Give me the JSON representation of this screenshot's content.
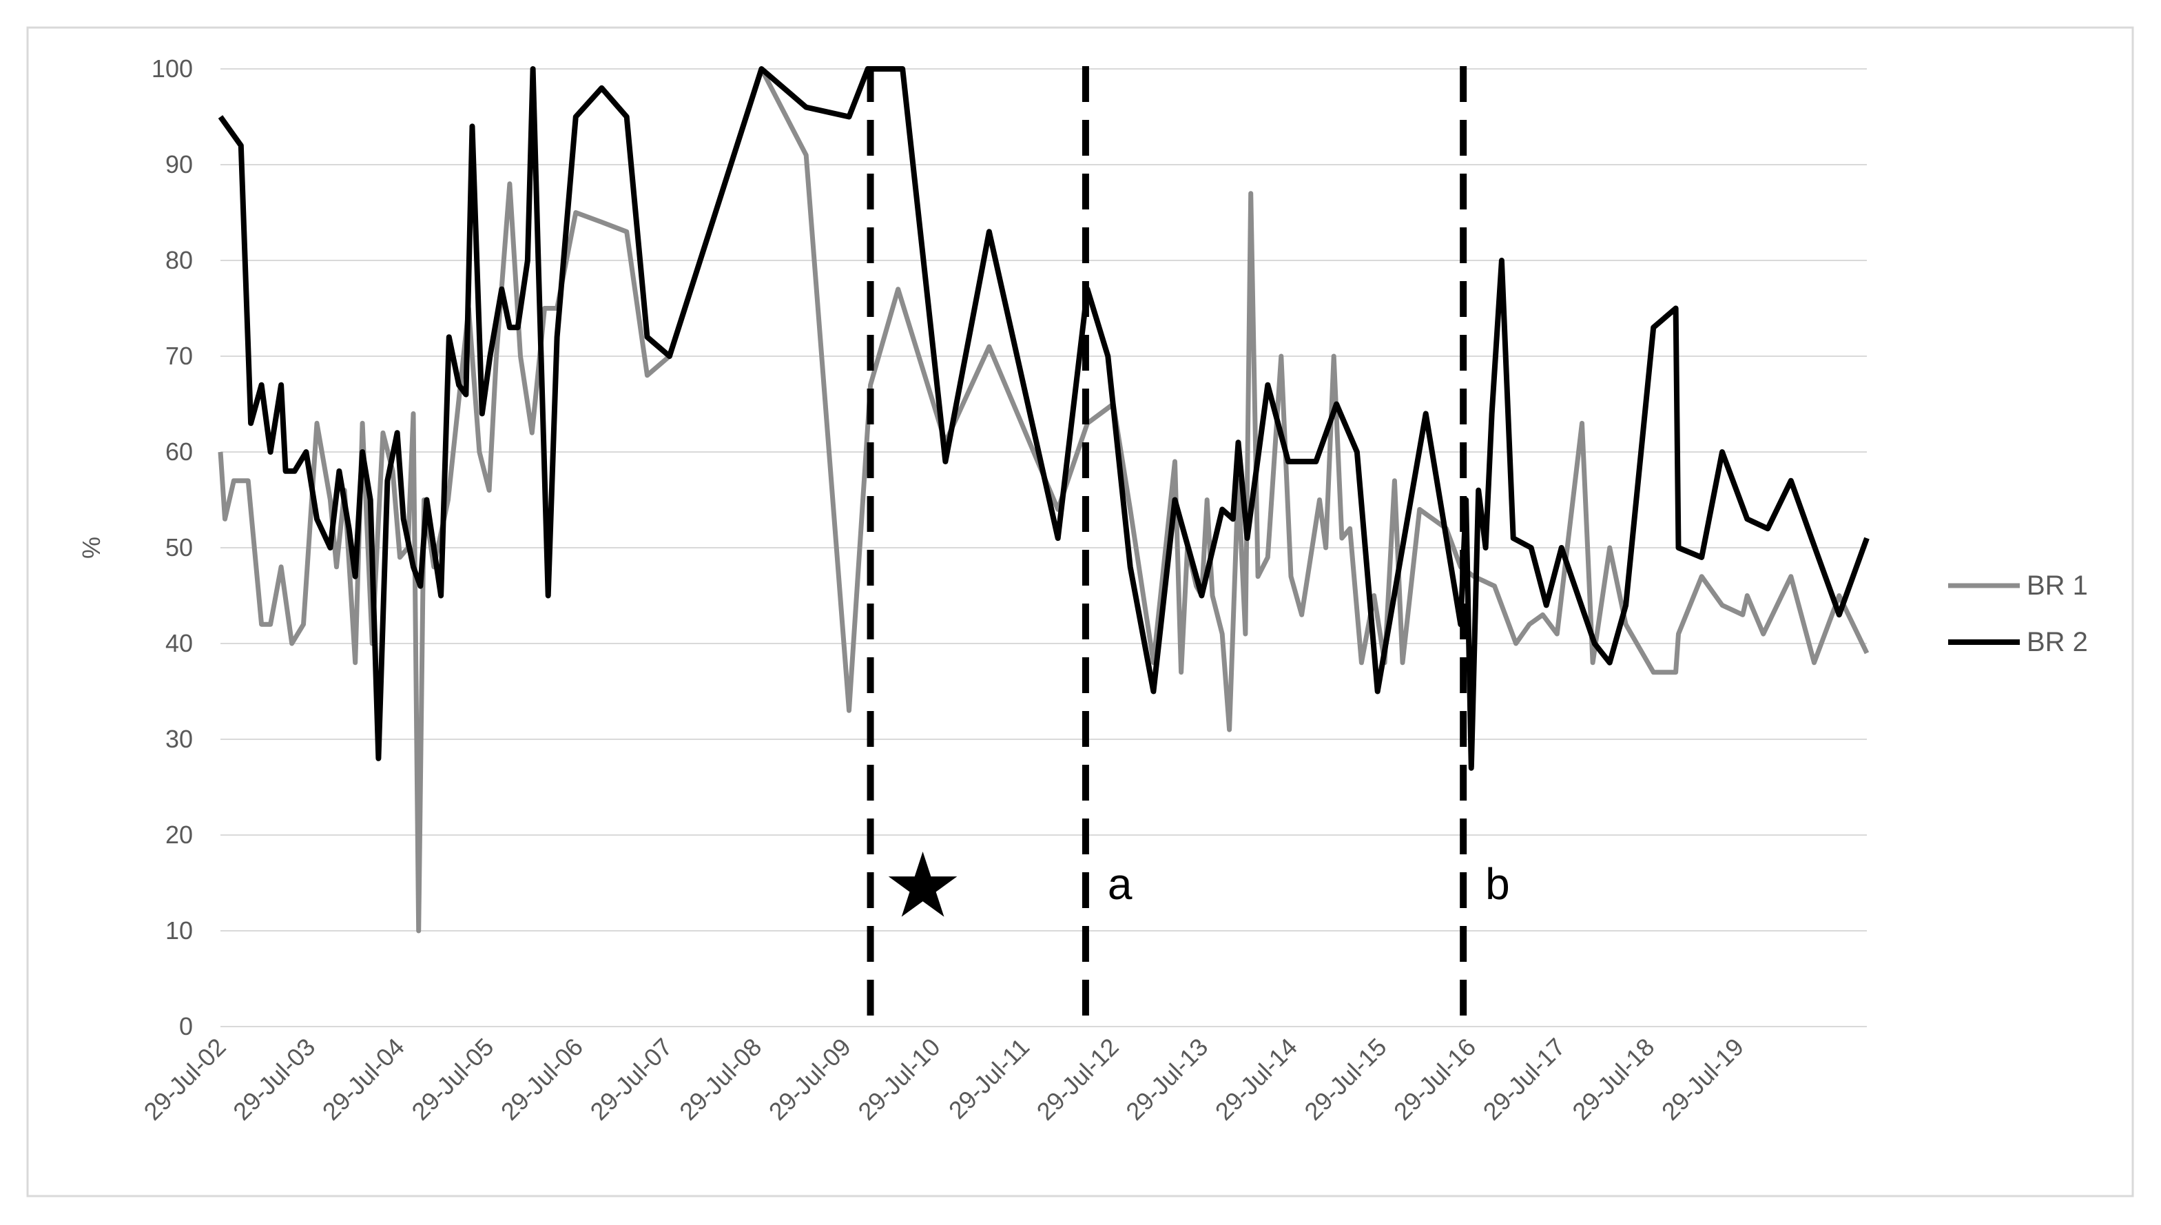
{
  "chart_data": {
    "type": "line",
    "y_label": "%",
    "xlim": [
      2002.57,
      2021.01
    ],
    "xticks": [
      {
        "value": 2002.57,
        "label": "29-Jul-02"
      },
      {
        "value": 2003.57,
        "label": "29-Jul-03"
      },
      {
        "value": 2004.57,
        "label": "29-Jul-04"
      },
      {
        "value": 2005.57,
        "label": "29-Jul-05"
      },
      {
        "value": 2006.57,
        "label": "29-Jul-06"
      },
      {
        "value": 2007.57,
        "label": "29-Jul-07"
      },
      {
        "value": 2008.57,
        "label": "29-Jul-08"
      },
      {
        "value": 2009.57,
        "label": "29-Jul-09"
      },
      {
        "value": 2010.57,
        "label": "29-Jul-10"
      },
      {
        "value": 2011.57,
        "label": "29-Jul-11"
      },
      {
        "value": 2012.57,
        "label": "29-Jul-12"
      },
      {
        "value": 2013.57,
        "label": "29-Jul-13"
      },
      {
        "value": 2014.57,
        "label": "29-Jul-14"
      },
      {
        "value": 2015.57,
        "label": "29-Jul-15"
      },
      {
        "value": 2016.57,
        "label": "29-Jul-16"
      },
      {
        "value": 2017.57,
        "label": "29-Jul-17"
      },
      {
        "value": 2018.57,
        "label": "29-Jul-18"
      },
      {
        "value": 2019.57,
        "label": "29-Jul-19"
      }
    ],
    "ylim": [
      0,
      100
    ],
    "yticks": [
      0,
      10,
      20,
      30,
      40,
      50,
      60,
      70,
      80,
      90,
      100
    ],
    "grid": true,
    "legend": "right",
    "markers": [
      {
        "x": 2009.85,
        "label": "★"
      },
      {
        "x": 2012.26,
        "label": "a"
      },
      {
        "x": 2016.49,
        "label": "b"
      }
    ],
    "series": [
      {
        "name": "BR 1",
        "color": "#8c8c8c",
        "x": [
          2002.57,
          2002.62,
          2002.72,
          2002.88,
          2003.03,
          2003.13,
          2003.25,
          2003.37,
          2003.5,
          2003.65,
          2003.8,
          2003.87,
          2003.96,
          2004.08,
          2004.16,
          2004.27,
          2004.39,
          2004.5,
          2004.58,
          2004.67,
          2004.73,
          2004.79,
          2004.85,
          2004.96,
          2005.12,
          2005.35,
          2005.47,
          2005.58,
          2005.66,
          2005.81,
          2005.93,
          2006.06,
          2006.2,
          2006.34,
          2006.55,
          2006.84,
          2007.12,
          2007.35,
          2007.6,
          2008.63,
          2009.13,
          2009.61,
          2009.85,
          2010.16,
          2010.69,
          2011.18,
          2011.95,
          2012.28,
          2012.57,
          2012.76,
          2013.02,
          2013.26,
          2013.33,
          2013.4,
          2013.5,
          2013.56,
          2013.62,
          2013.68,
          2013.79,
          2013.87,
          2013.97,
          2014.05,
          2014.11,
          2014.19,
          2014.3,
          2014.45,
          2014.56,
          2014.68,
          2014.88,
          2014.95,
          2015.04,
          2015.13,
          2015.22,
          2015.35,
          2015.49,
          2015.61,
          2015.72,
          2015.81,
          2016.0,
          2016.15,
          2016.3,
          2016.46,
          2016.61,
          2016.84,
          2017.08,
          2017.23,
          2017.38,
          2017.54,
          2017.82,
          2017.94,
          2018.13,
          2018.31,
          2018.62,
          2018.87,
          2018.9,
          2019.16,
          2019.39,
          2019.62,
          2019.67,
          2019.85,
          2020.16,
          2020.42,
          2020.7,
          2021.01
        ],
        "values": [
          60,
          53,
          57,
          57,
          42,
          42,
          48,
          40,
          42,
          63,
          55,
          48,
          56,
          38,
          63,
          40,
          62,
          58,
          49,
          50,
          64,
          10,
          55,
          48,
          55,
          75,
          60,
          56,
          70,
          88,
          70,
          62,
          75,
          75,
          85,
          84,
          83,
          68,
          70,
          100,
          91,
          33,
          67,
          77,
          61,
          71,
          54,
          63,
          65,
          54,
          38,
          59,
          37,
          50,
          46,
          45,
          55,
          45,
          41,
          31,
          57,
          41,
          87,
          47,
          49,
          70,
          47,
          43,
          55,
          50,
          70,
          51,
          52,
          38,
          45,
          38,
          57,
          38,
          54,
          53,
          52,
          48,
          47,
          46,
          40,
          42,
          43,
          41,
          63,
          38,
          50,
          42,
          37,
          37,
          41,
          47,
          44,
          43,
          45,
          41,
          47,
          38,
          45,
          39
        ]
      },
      {
        "name": "BR 2",
        "color": "#000000",
        "x": [
          2002.57,
          2002.8,
          2002.91,
          2003.03,
          2003.13,
          2003.25,
          2003.3,
          2003.4,
          2003.53,
          2003.65,
          2003.8,
          2003.9,
          2004.01,
          2004.08,
          2004.16,
          2004.25,
          2004.34,
          2004.44,
          2004.55,
          2004.62,
          2004.73,
          2004.81,
          2004.88,
          2005.04,
          2005.13,
          2005.24,
          2005.32,
          2005.39,
          2005.5,
          2005.59,
          2005.72,
          2005.81,
          2005.9,
          2006.01,
          2006.07,
          2006.13,
          2006.24,
          2006.34,
          2006.55,
          2006.84,
          2007.12,
          2007.35,
          2007.6,
          2008.63,
          2009.13,
          2009.61,
          2009.82,
          2010.21,
          2010.69,
          2011.18,
          2011.95,
          2012.28,
          2012.51,
          2012.76,
          2013.02,
          2013.26,
          2013.56,
          2013.79,
          2013.91,
          2013.97,
          2014.07,
          2014.3,
          2014.53,
          2014.84,
          2015.07,
          2015.3,
          2015.53,
          2016.07,
          2016.46,
          2016.52,
          2016.58,
          2016.66,
          2016.74,
          2016.81,
          2016.92,
          2017.05,
          2017.25,
          2017.42,
          2017.59,
          2017.96,
          2018.13,
          2018.31,
          2018.62,
          2018.87,
          2018.9,
          2019.16,
          2019.39,
          2019.67,
          2019.9,
          2020.16,
          2020.39,
          2020.7,
          2021.01
        ],
        "values": [
          95,
          92,
          63,
          67,
          60,
          67,
          58,
          58,
          60,
          53,
          50,
          58,
          52,
          47,
          60,
          55,
          28,
          57,
          62,
          53,
          48,
          46,
          55,
          45,
          72,
          67,
          66,
          94,
          64,
          70,
          77,
          73,
          73,
          80,
          100,
          80,
          45,
          72,
          95,
          98,
          95,
          72,
          70,
          100,
          96,
          95,
          100,
          100,
          59,
          83,
          51,
          77,
          70,
          48,
          35,
          55,
          45,
          54,
          53,
          61,
          51,
          67,
          59,
          59,
          65,
          60,
          35,
          64,
          42,
          55,
          27,
          56,
          50,
          64,
          80,
          51,
          50,
          44,
          50,
          40,
          38,
          44,
          73,
          75,
          50,
          49,
          60,
          53,
          52,
          57,
          51,
          43,
          51
        ]
      }
    ]
  }
}
